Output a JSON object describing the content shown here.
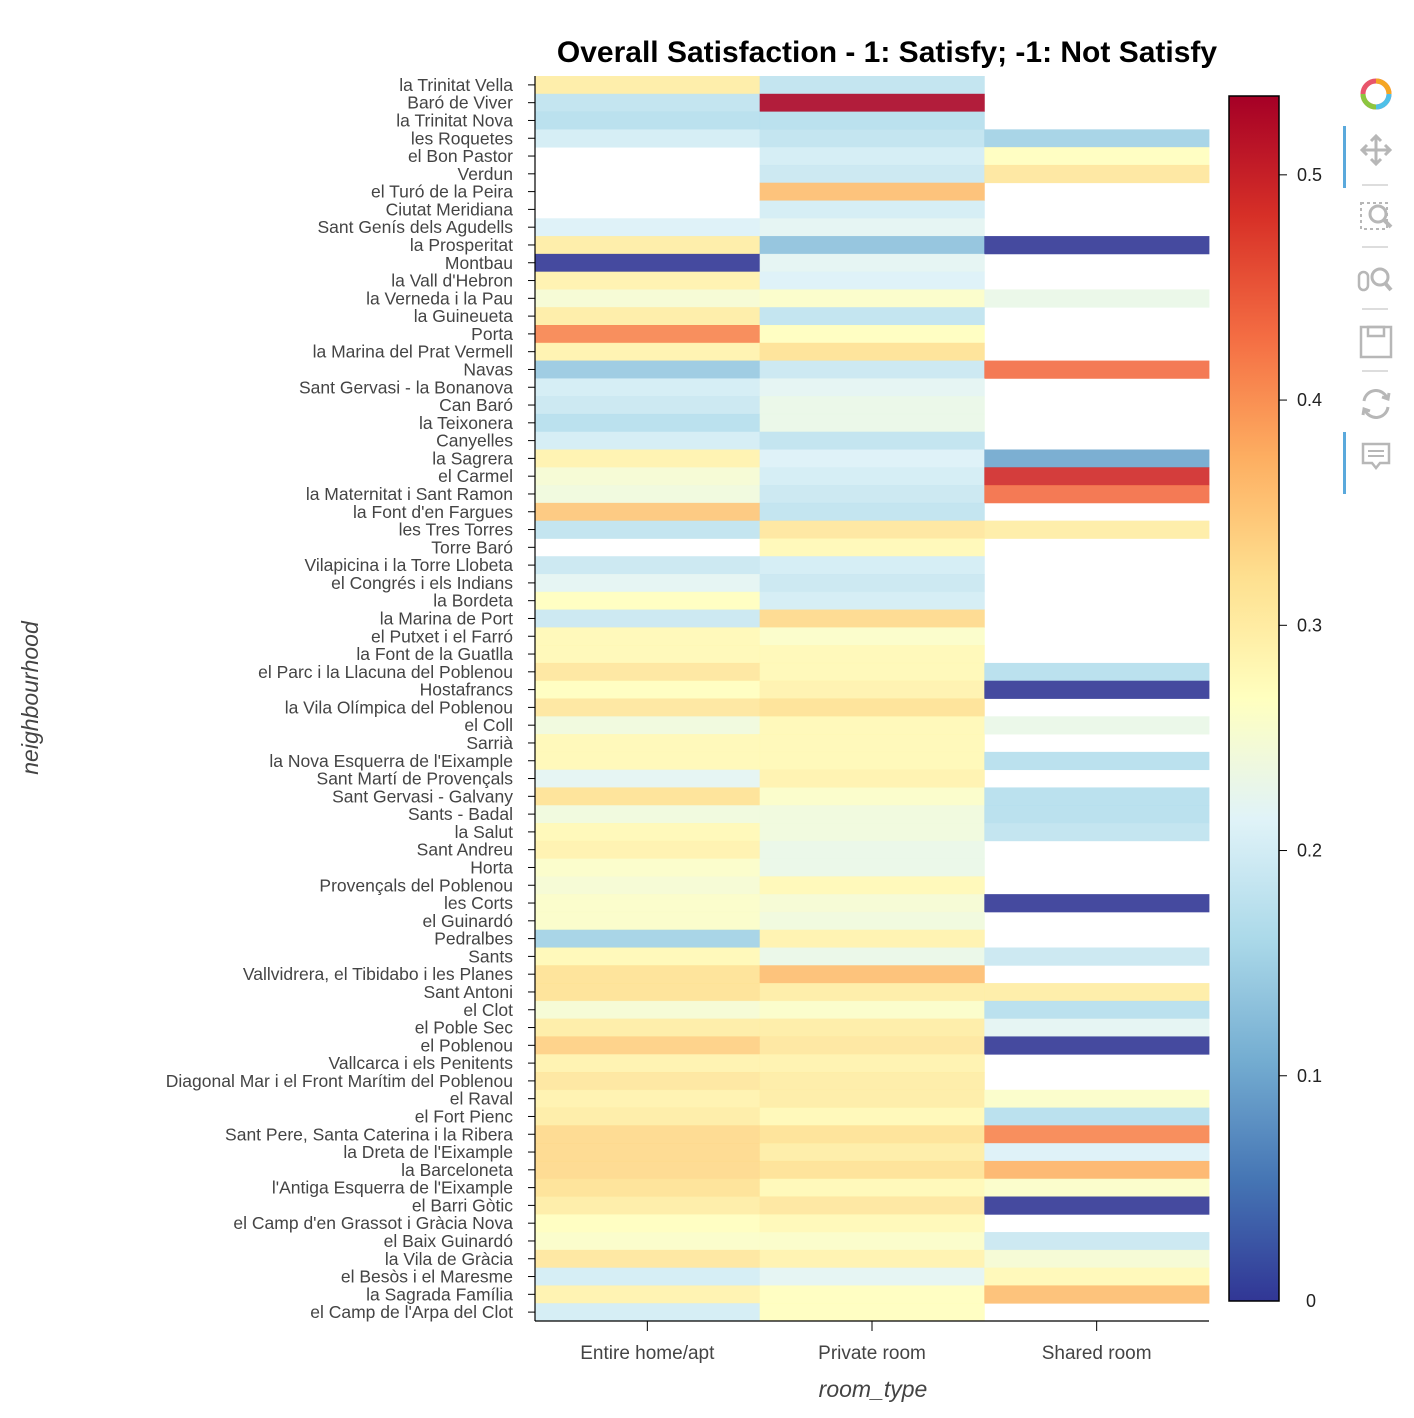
{
  "chart_data": {
    "type": "heatmap",
    "title": "Overall Satisfaction - 1: Satisfy; -1: Not Satisfy",
    "xlabel": "room_type",
    "ylabel": "neighbourhood",
    "x": [
      "Entire home/apt",
      "Private room",
      "Shared room"
    ],
    "y": [
      "la Trinitat Vella",
      "Baró de Viver",
      "la Trinitat Nova",
      "les Roquetes",
      "el Bon Pastor",
      "Verdun",
      "el Turó de la Peira",
      "Ciutat Meridiana",
      "Sant Genís dels Agudells",
      "la Prosperitat",
      "Montbau",
      "la Vall d'Hebron",
      "la Verneda i la Pau",
      "la Guineueta",
      "Porta",
      "la Marina del Prat Vermell",
      "Navas",
      "Sant Gervasi - la Bonanova",
      "Can Baró",
      "la Teixonera",
      "Canyelles",
      "la Sagrera",
      "el Carmel",
      "la Maternitat i Sant Ramon",
      "la Font d'en Fargues",
      "les Tres Torres",
      "Torre Baró",
      "Vilapicina i la Torre Llobeta",
      "el Congrés i els Indians",
      "la Bordeta",
      "la Marina de Port",
      "el Putxet i el Farró",
      "la Font de la Guatlla",
      "el Parc i la Llacuna del Poblenou",
      "Hostafrancs",
      "la Vila Olímpica del Poblenou",
      "el Coll",
      "Sarrià",
      "la Nova Esquerra de l'Eixample",
      "Sant Martí de Provençals",
      "Sant Gervasi - Galvany",
      "Sants - Badal",
      "la Salut",
      "Sant Andreu",
      "Horta",
      "Provençals del Poblenou",
      "les Corts",
      "el Guinardó",
      "Pedralbes",
      "Sants",
      "Vallvidrera, el Tibidabo i les Planes",
      "Sant Antoni",
      "el Clot",
      "el Poble Sec",
      "el Poblenou",
      "Vallcarca i els Penitents",
      "Diagonal Mar i el Front Marítim del Poblenou",
      "el Raval",
      "el Fort Pienc",
      "Sant Pere, Santa Caterina i la Ribera",
      "la Dreta de l'Eixample",
      "la Barceloneta",
      "l'Antiga Esquerra de l'Eixample",
      "el Barri Gòtic",
      "el Camp d'en Grassot i Gràcia Nova",
      "el Baix Guinardó",
      "la Vila de Gràcia",
      "el Besòs i el Maresme",
      "la Sagrada Família",
      "el Camp de l'Arpa del Clot"
    ],
    "values": [
      [
        0.3,
        0.18,
        null
      ],
      [
        0.18,
        0.53,
        null
      ],
      [
        0.17,
        0.17,
        null
      ],
      [
        0.2,
        0.18,
        0.15
      ],
      [
        null,
        0.2,
        0.27
      ],
      [
        null,
        0.19,
        0.31
      ],
      [
        null,
        0.36,
        null
      ],
      [
        null,
        0.2,
        null
      ],
      [
        0.21,
        0.22,
        null
      ],
      [
        0.3,
        0.13,
        0.0
      ],
      [
        0.0,
        0.22,
        null
      ],
      [
        0.29,
        0.21,
        null
      ],
      [
        0.25,
        0.26,
        0.23
      ],
      [
        0.3,
        0.18,
        null
      ],
      [
        0.41,
        0.27,
        null
      ],
      [
        0.29,
        0.32,
        null
      ],
      [
        0.14,
        0.19,
        0.43
      ],
      [
        0.2,
        0.22,
        null
      ],
      [
        0.19,
        0.23,
        null
      ],
      [
        0.17,
        0.23,
        null
      ],
      [
        0.2,
        0.18,
        null
      ],
      [
        0.29,
        0.21,
        0.1
      ],
      [
        0.25,
        0.2,
        0.49
      ],
      [
        0.24,
        0.19,
        0.43
      ],
      [
        0.35,
        0.18,
        null
      ],
      [
        0.18,
        0.31,
        0.3
      ],
      [
        null,
        0.28,
        null
      ],
      [
        0.19,
        0.2,
        null
      ],
      [
        0.22,
        0.19,
        null
      ],
      [
        0.27,
        0.2,
        null
      ],
      [
        0.19,
        0.33,
        null
      ],
      [
        0.28,
        0.26,
        null
      ],
      [
        0.28,
        0.28,
        null
      ],
      [
        0.31,
        0.28,
        0.17
      ],
      [
        0.27,
        0.29,
        0.0
      ],
      [
        0.31,
        0.32,
        null
      ],
      [
        0.24,
        0.28,
        0.23
      ],
      [
        0.28,
        0.28,
        null
      ],
      [
        0.28,
        0.28,
        0.17
      ],
      [
        0.22,
        0.29,
        null
      ],
      [
        0.32,
        0.26,
        0.17
      ],
      [
        0.24,
        0.24,
        0.17
      ],
      [
        0.28,
        0.24,
        0.18
      ],
      [
        0.29,
        0.23,
        null
      ],
      [
        0.26,
        0.23,
        null
      ],
      [
        0.25,
        0.28,
        null
      ],
      [
        0.26,
        0.25,
        0.0
      ],
      [
        0.26,
        0.24,
        null
      ],
      [
        0.15,
        0.29,
        null
      ],
      [
        0.28,
        0.23,
        0.19
      ],
      [
        0.32,
        0.36,
        null
      ],
      [
        0.32,
        0.3,
        0.3
      ],
      [
        0.25,
        0.26,
        0.17
      ],
      [
        0.3,
        0.3,
        0.22
      ],
      [
        0.34,
        0.31,
        0.0
      ],
      [
        0.29,
        0.29,
        null
      ],
      [
        0.31,
        0.3,
        null
      ],
      [
        0.29,
        0.3,
        0.26
      ],
      [
        0.3,
        0.28,
        0.17
      ],
      [
        0.33,
        0.32,
        0.41
      ],
      [
        0.33,
        0.3,
        0.21
      ],
      [
        0.33,
        0.32,
        0.37
      ],
      [
        0.32,
        0.28,
        0.26
      ],
      [
        0.3,
        0.31,
        0.0
      ],
      [
        0.27,
        0.28,
        null
      ],
      [
        0.26,
        0.26,
        0.19
      ],
      [
        0.31,
        0.29,
        0.25
      ],
      [
        0.2,
        0.22,
        0.28
      ],
      [
        0.29,
        0.27,
        0.36
      ],
      [
        0.2,
        0.27,
        null
      ]
    ],
    "colorbar": {
      "min": 0,
      "max": 0.535,
      "ticks": [
        "0",
        "0.1",
        "0.2",
        "0.3",
        "0.4",
        "0.5"
      ],
      "tick_values": [
        0,
        0.1,
        0.2,
        0.3,
        0.4,
        0.5
      ],
      "palette": "RdYlBu reversed"
    },
    "grid": false
  },
  "toolbar": {
    "tools": [
      {
        "name": "logo-icon",
        "active": false
      },
      {
        "name": "pan-icon",
        "active": true
      },
      {
        "name": "box-zoom-icon",
        "active": false
      },
      {
        "name": "wheel-zoom-icon",
        "active": false
      },
      {
        "name": "save-icon",
        "active": false
      },
      {
        "name": "reset-icon",
        "active": false
      },
      {
        "name": "hover-icon",
        "active": true
      }
    ]
  }
}
